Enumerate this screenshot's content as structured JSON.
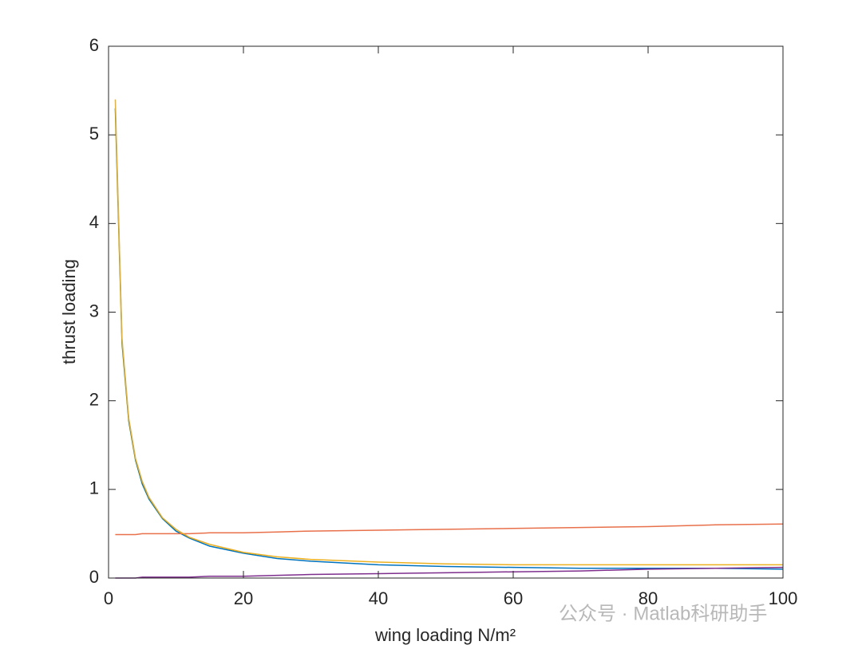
{
  "chart_data": {
    "type": "line",
    "x_label": "wing loading N/m²",
    "y_label": "thrust loading",
    "annotation": "公众号 · Matlab科研助手",
    "x": [
      1,
      2,
      3,
      4,
      5,
      6,
      8,
      10,
      12,
      15,
      20,
      25,
      30,
      40,
      50,
      60,
      70,
      80,
      90,
      100
    ],
    "series": [
      {
        "color": "#0072bd",
        "values": [
          5.3,
          2.65,
          1.77,
          1.33,
          1.06,
          0.89,
          0.67,
          0.53,
          0.45,
          0.36,
          0.28,
          0.22,
          0.19,
          0.15,
          0.13,
          0.12,
          0.11,
          0.11,
          0.11,
          0.1
        ]
      },
      {
        "color": "#e8704a",
        "values": [
          0.49,
          0.49,
          0.49,
          0.49,
          0.5,
          0.5,
          0.5,
          0.5,
          0.5,
          0.51,
          0.51,
          0.52,
          0.53,
          0.54,
          0.55,
          0.56,
          0.57,
          0.58,
          0.6,
          0.61
        ]
      },
      {
        "color": "#edb120",
        "values": [
          5.4,
          2.7,
          1.8,
          1.35,
          1.09,
          0.91,
          0.68,
          0.55,
          0.46,
          0.38,
          0.29,
          0.24,
          0.21,
          0.18,
          0.16,
          0.15,
          0.15,
          0.15,
          0.15,
          0.15
        ]
      },
      {
        "color": "#7e2f8e",
        "values": [
          0.0,
          0.0,
          0.0,
          0.0,
          0.01,
          0.01,
          0.01,
          0.01,
          0.01,
          0.02,
          0.02,
          0.03,
          0.04,
          0.05,
          0.06,
          0.07,
          0.08,
          0.1,
          0.11,
          0.12
        ]
      }
    ],
    "xlim": [
      0,
      100
    ],
    "xticks": [
      0,
      20,
      40,
      60,
      80,
      100
    ],
    "ylim": [
      0,
      6
    ],
    "yticks": [
      0,
      1,
      2,
      3,
      4,
      5,
      6
    ],
    "grid": false,
    "box": true
  }
}
